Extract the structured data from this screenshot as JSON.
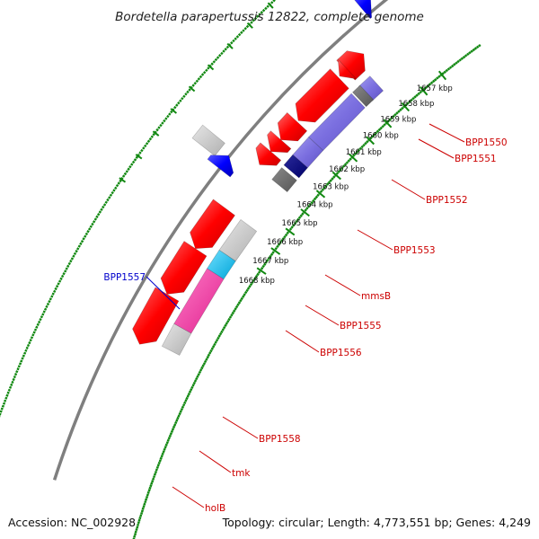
{
  "title": "Bordetella parapertussis 12822, complete genome",
  "footer": {
    "accession": "Accession: NC_002928",
    "topology": "Topology: circular; Length: 4,773,551 bp; Genes: 4,249"
  },
  "colors": {
    "backbone": "#7f7f7f",
    "tick": "#118811",
    "label_red": "#cc0000",
    "label_blue": "#0000cc"
  },
  "scale": {
    "unit": "kbp",
    "labels": [
      "1657 kbp",
      "1658 kbp",
      "1659 kbp",
      "1660 kbp",
      "1661 kbp",
      "1662 kbp",
      "1663 kbp",
      "1664 kbp",
      "1665 kbp",
      "1666 kbp",
      "1667 kbp",
      "1668 kbp"
    ]
  },
  "gene_labels": [
    {
      "text": "BPP1550",
      "color": "red"
    },
    {
      "text": "BPP1551",
      "color": "red"
    },
    {
      "text": "BPP1552",
      "color": "red"
    },
    {
      "text": "BPP1553",
      "color": "red"
    },
    {
      "text": "mmsB",
      "color": "red"
    },
    {
      "text": "BPP1555",
      "color": "red"
    },
    {
      "text": "BPP1556",
      "color": "red"
    },
    {
      "text": "BPP1557",
      "color": "blue"
    },
    {
      "text": "BPP1558",
      "color": "red"
    },
    {
      "text": "tmk",
      "color": "red"
    },
    {
      "text": "holB",
      "color": "red"
    }
  ]
}
